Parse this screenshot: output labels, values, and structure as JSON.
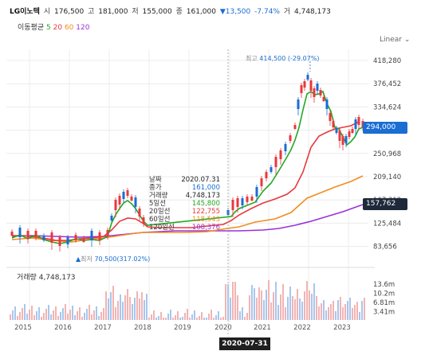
{
  "header": {
    "name": "LG이노텍",
    "open_label": "시",
    "open": "176,500",
    "high_label": "고",
    "high": "181,000",
    "low_label": "저",
    "low": "155,000",
    "close_label": "종",
    "close": "161,000",
    "change": "▼13,500",
    "change_pct": "-7.74%",
    "volume_label": "거",
    "volume": "4,748,173"
  },
  "ma_row": {
    "label": "이동평균",
    "p5": "5",
    "p20": "20",
    "p60": "60",
    "p120": "120"
  },
  "scale": {
    "label": "Linear",
    "icon": "chevron-down-icon"
  },
  "price_axis": {
    "ticks": [
      "418,280",
      "376,452",
      "334,624",
      "294,000",
      "250,968",
      "209,140",
      "167,312",
      "125,484",
      "83,656"
    ]
  },
  "badges": {
    "current": "294,000",
    "ma": "157,762"
  },
  "high_marker": {
    "label": "최고",
    "value": "414,500",
    "pct": "(-29.07%)"
  },
  "low_marker": {
    "label": "최저",
    "value": "70,500",
    "pct": "(317.02%)"
  },
  "tooltip": {
    "rows": [
      {
        "k": "날짜",
        "v": "2020.07.31"
      },
      {
        "k": "종가",
        "v": "161,000"
      },
      {
        "k": "거래량",
        "v": "4,748,173"
      },
      {
        "k": "5일선",
        "v": "145,800"
      },
      {
        "k": "20일선",
        "v": "122,755"
      },
      {
        "k": "60일선",
        "v": "118,543"
      },
      {
        "k": "120일선",
        "v": "108,376"
      }
    ]
  },
  "volume": {
    "label": "거래량",
    "value": "4,748,173",
    "ticks": [
      "13.6m",
      "10.2m",
      "6.81m",
      "3.41m"
    ]
  },
  "x_axis": {
    "ticks": [
      "2015",
      "2016",
      "2017",
      "2018",
      "2019",
      "2020",
      "2021",
      "2022",
      "2023"
    ]
  },
  "cursor_date": "2020-07-31",
  "colors": {
    "ma5": "#22a822",
    "ma20": "#e8383d",
    "ma60": "#f28c1e",
    "ma120": "#9b30d9",
    "up": "#e8383d",
    "down": "#1a6dd3",
    "grid": "#ececec"
  }
}
